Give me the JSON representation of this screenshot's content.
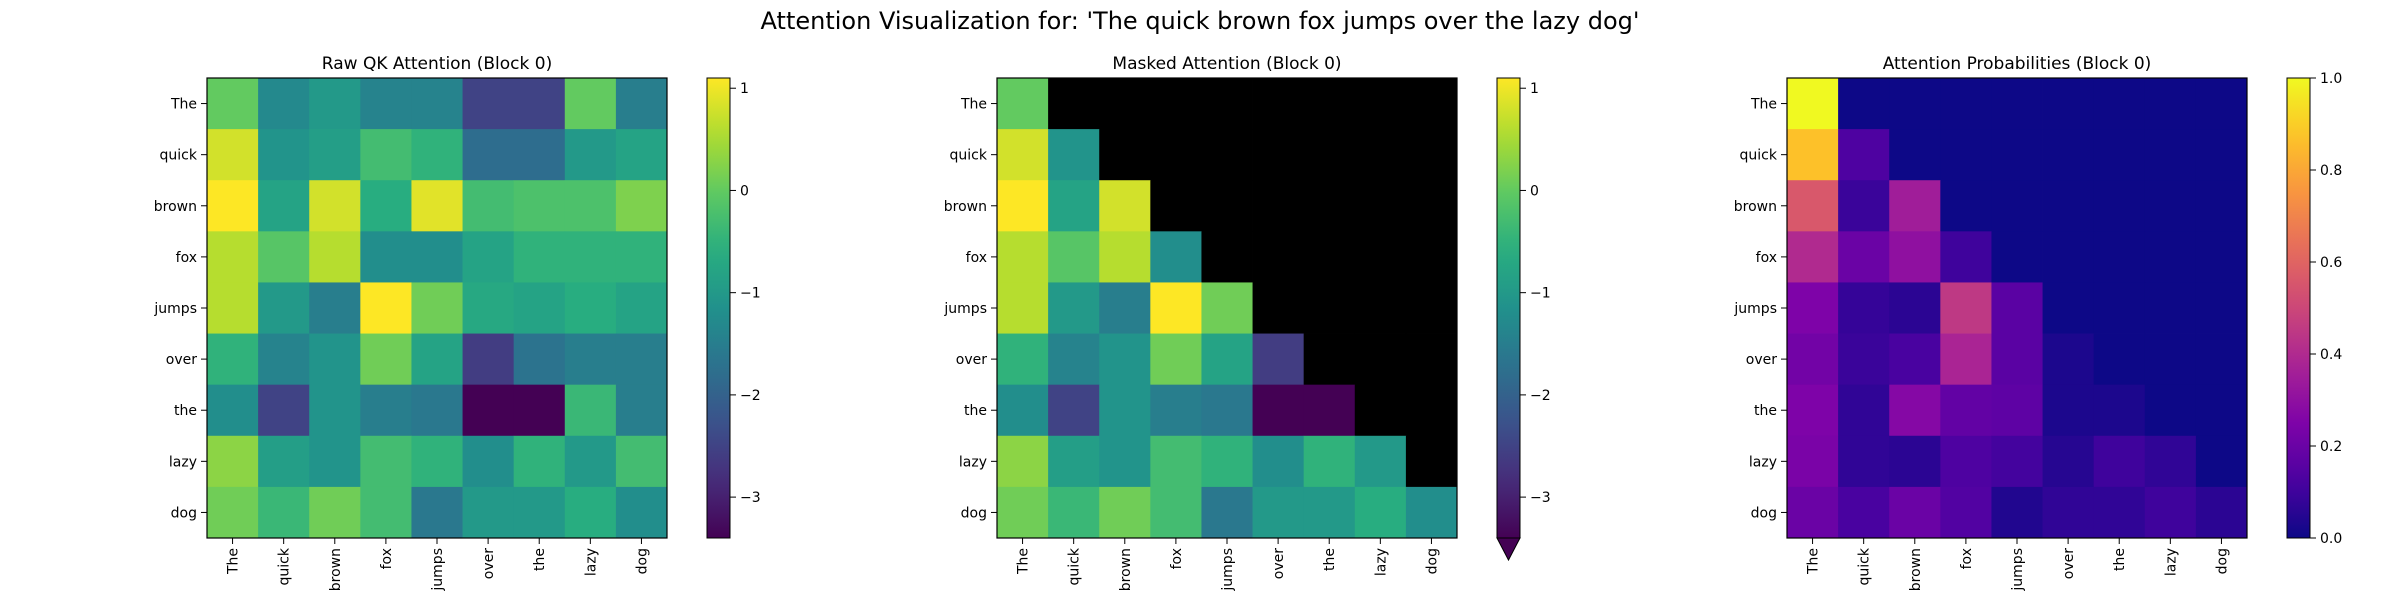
{
  "figure": {
    "suptitle": "Attention Visualization for: 'The quick brown fox jumps over the lazy dog'"
  },
  "tokens": [
    "The",
    "quick",
    "brown",
    "fox",
    "jumps",
    "over",
    "the",
    "lazy",
    "dog"
  ],
  "chart_data": [
    {
      "type": "heatmap",
      "title": "Raw QK Attention (Block 0)",
      "colormap": "viridis",
      "vmin": -3.4,
      "vmax": 1.1,
      "colorbar_ticks": [
        1,
        0,
        -1,
        -2,
        -3
      ],
      "colorbar_tick_labels": [
        "1",
        "0",
        "−1",
        "−2",
        "−3"
      ],
      "colorbar_extend_min": false,
      "rows": [
        "The",
        "quick",
        "brown",
        "fox",
        "jumps",
        "over",
        "the",
        "lazy",
        "dog"
      ],
      "cols": [
        "The",
        "quick",
        "brown",
        "fox",
        "jumps",
        "over",
        "the",
        "lazy",
        "dog"
      ],
      "values": [
        [
          0.0,
          -1.3,
          -1.0,
          -1.4,
          -1.4,
          -2.5,
          -2.5,
          0.0,
          -1.5
        ],
        [
          0.8,
          -1.1,
          -0.9,
          -0.3,
          -0.5,
          -1.8,
          -1.8,
          -1.0,
          -0.8
        ],
        [
          1.1,
          -0.8,
          0.8,
          -0.6,
          0.9,
          -0.3,
          -0.2,
          -0.2,
          0.2
        ],
        [
          0.6,
          -0.1,
          0.6,
          -1.2,
          -1.2,
          -0.8,
          -0.5,
          -0.5,
          -0.5
        ],
        [
          0.6,
          -1.0,
          -1.5,
          1.1,
          0.1,
          -0.7,
          -0.8,
          -0.6,
          -0.8
        ],
        [
          -0.5,
          -1.4,
          -1.1,
          0.1,
          -0.8,
          -2.6,
          -1.7,
          -1.5,
          -1.5
        ],
        [
          -1.2,
          -2.5,
          -1.1,
          -1.5,
          -1.6,
          -3.4,
          -3.4,
          -0.4,
          -1.5
        ],
        [
          0.3,
          -0.9,
          -1.1,
          -0.3,
          -0.5,
          -1.2,
          -0.5,
          -1.0,
          -0.3
        ],
        [
          0.1,
          -0.4,
          0.1,
          -0.3,
          -1.6,
          -1.0,
          -1.0,
          -0.6,
          -1.2
        ]
      ]
    },
    {
      "type": "heatmap",
      "title": "Masked Attention (Block 0)",
      "colormap": "viridis",
      "vmin": -3.4,
      "vmax": 1.1,
      "colorbar_ticks": [
        1,
        0,
        -1,
        -2,
        -3
      ],
      "colorbar_tick_labels": [
        "1",
        "0",
        "−1",
        "−2",
        "−3"
      ],
      "colorbar_extend_min": true,
      "masked_color": "#000000",
      "rows": [
        "The",
        "quick",
        "brown",
        "fox",
        "jumps",
        "over",
        "the",
        "lazy",
        "dog"
      ],
      "cols": [
        "The",
        "quick",
        "brown",
        "fox",
        "jumps",
        "over",
        "the",
        "lazy",
        "dog"
      ],
      "values": [
        [
          0.0,
          null,
          null,
          null,
          null,
          null,
          null,
          null,
          null
        ],
        [
          0.8,
          -1.1,
          null,
          null,
          null,
          null,
          null,
          null,
          null
        ],
        [
          1.1,
          -0.8,
          0.8,
          null,
          null,
          null,
          null,
          null,
          null
        ],
        [
          0.6,
          -0.1,
          0.6,
          -1.2,
          null,
          null,
          null,
          null,
          null
        ],
        [
          0.6,
          -1.0,
          -1.5,
          1.1,
          0.1,
          null,
          null,
          null,
          null
        ],
        [
          -0.5,
          -1.4,
          -1.1,
          0.1,
          -0.8,
          -2.6,
          null,
          null,
          null
        ],
        [
          -1.2,
          -2.5,
          -1.1,
          -1.5,
          -1.6,
          -3.4,
          -3.4,
          null,
          null
        ],
        [
          0.3,
          -0.9,
          -1.1,
          -0.3,
          -0.5,
          -1.2,
          -0.5,
          -1.0,
          null
        ],
        [
          0.1,
          -0.4,
          0.1,
          -0.3,
          -1.6,
          -1.0,
          -1.0,
          -0.6,
          -1.2
        ]
      ]
    },
    {
      "type": "heatmap",
      "title": "Attention Probabilities (Block 0)",
      "colormap": "plasma",
      "vmin": 0.0,
      "vmax": 1.0,
      "colorbar_ticks": [
        1.0,
        0.8,
        0.6,
        0.4,
        0.2,
        0.0
      ],
      "colorbar_tick_labels": [
        "1.0",
        "0.8",
        "0.6",
        "0.4",
        "0.2",
        "0.0"
      ],
      "colorbar_extend_min": false,
      "rows": [
        "The",
        "quick",
        "brown",
        "fox",
        "jumps",
        "over",
        "the",
        "lazy",
        "dog"
      ],
      "cols": [
        "The",
        "quick",
        "brown",
        "fox",
        "jumps",
        "over",
        "the",
        "lazy",
        "dog"
      ],
      "values": [
        [
          1.0,
          0,
          0,
          0,
          0,
          0,
          0,
          0,
          0
        ],
        [
          0.87,
          0.13,
          0,
          0,
          0,
          0,
          0,
          0,
          0
        ],
        [
          0.56,
          0.09,
          0.35,
          0,
          0,
          0,
          0,
          0,
          0
        ],
        [
          0.4,
          0.2,
          0.3,
          0.1,
          0,
          0,
          0,
          0,
          0
        ],
        [
          0.25,
          0.08,
          0.06,
          0.45,
          0.16,
          0,
          0,
          0,
          0
        ],
        [
          0.22,
          0.09,
          0.12,
          0.38,
          0.16,
          0.03,
          0,
          0,
          0
        ],
        [
          0.25,
          0.07,
          0.27,
          0.18,
          0.17,
          0.03,
          0.03,
          0,
          0
        ],
        [
          0.24,
          0.07,
          0.06,
          0.13,
          0.11,
          0.05,
          0.1,
          0.07,
          0
        ],
        [
          0.2,
          0.12,
          0.2,
          0.14,
          0.04,
          0.07,
          0.07,
          0.1,
          0.06
        ]
      ]
    }
  ]
}
